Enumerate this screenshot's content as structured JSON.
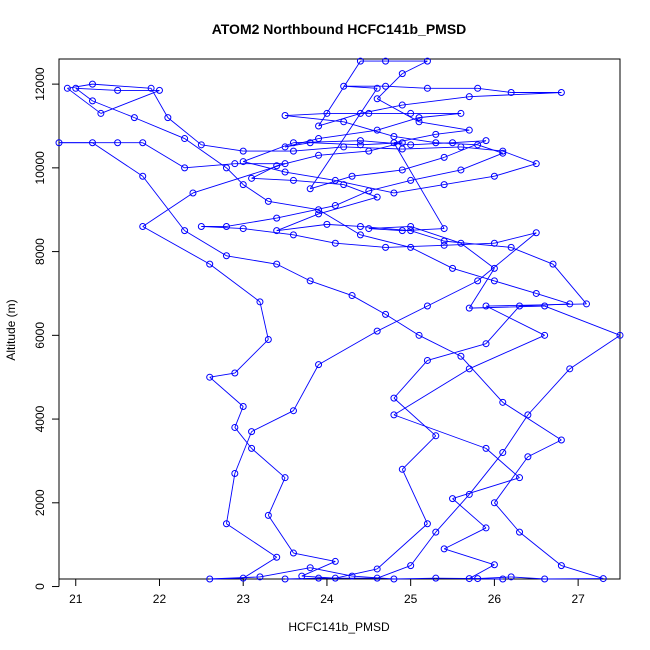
{
  "chart_data": {
    "type": "line",
    "title": "ATOM2 Northbound HCFC141b_PMSD",
    "xlabel": "HCFC141b_PMSD",
    "ylabel": "Altitude (m)",
    "xlim": [
      20.8,
      27.5
    ],
    "ylim": [
      180,
      12600
    ],
    "x_ticks": [
      21,
      22,
      23,
      24,
      25,
      26,
      27
    ],
    "y_ticks": [
      0,
      2000,
      4000,
      6000,
      8000,
      10000,
      12000
    ],
    "grid": false,
    "legend": "none",
    "marker": "open-circle",
    "series_color": "#0000ff",
    "series": [
      {
        "points": [
          [
            26.1,
            180
          ],
          [
            25.7,
            190
          ],
          [
            26.0,
            520
          ],
          [
            25.4,
            900
          ],
          [
            25.9,
            1400
          ],
          [
            25.5,
            2100
          ],
          [
            26.3,
            2600
          ],
          [
            25.9,
            3300
          ],
          [
            24.8,
            4100
          ],
          [
            25.7,
            5200
          ],
          [
            26.6,
            6000
          ],
          [
            25.9,
            6700
          ],
          [
            27.1,
            6750
          ],
          [
            26.7,
            7700
          ],
          [
            26.2,
            8100
          ],
          [
            25.4,
            8250
          ],
          [
            25.0,
            8500
          ],
          [
            24.4,
            8600
          ],
          [
            24.0,
            8650
          ],
          [
            23.4,
            8500
          ],
          [
            23.9,
            8900
          ],
          [
            24.6,
            9300
          ],
          [
            24.2,
            9600
          ],
          [
            23.6,
            9700
          ],
          [
            23.1,
            9750
          ],
          [
            23.4,
            10050
          ],
          [
            23.9,
            10300
          ],
          [
            24.5,
            10400
          ],
          [
            24.9,
            10600
          ],
          [
            24.4,
            10550
          ],
          [
            23.8,
            10600
          ],
          [
            23.5,
            10500
          ],
          [
            23.9,
            10700
          ],
          [
            24.6,
            10900
          ],
          [
            25.1,
            11200
          ],
          [
            25.6,
            11300
          ],
          [
            25.0,
            11300
          ],
          [
            24.5,
            11300
          ],
          [
            24.0,
            11300
          ],
          [
            23.5,
            11250
          ],
          [
            24.2,
            11100
          ],
          [
            24.8,
            10750
          ],
          [
            25.3,
            10600
          ],
          [
            25.8,
            10550
          ],
          [
            26.1,
            10350
          ],
          [
            25.6,
            9950
          ],
          [
            25.0,
            9700
          ],
          [
            24.5,
            9450
          ],
          [
            24.1,
            9100
          ],
          [
            23.4,
            8800
          ],
          [
            22.8,
            8600
          ],
          [
            22.5,
            8600
          ],
          [
            23.0,
            8550
          ],
          [
            23.6,
            8400
          ],
          [
            24.1,
            8200
          ],
          [
            24.7,
            8100
          ],
          [
            25.4,
            8150
          ],
          [
            26.0,
            8200
          ],
          [
            26.5,
            8450
          ],
          [
            25.8,
            7300
          ],
          [
            25.2,
            6700
          ],
          [
            24.6,
            6100
          ],
          [
            23.9,
            5300
          ],
          [
            23.6,
            4200
          ],
          [
            23.1,
            3700
          ],
          [
            22.9,
            2700
          ],
          [
            22.8,
            1500
          ],
          [
            23.4,
            700
          ],
          [
            23.0,
            200
          ],
          [
            22.6,
            180
          ],
          [
            23.2,
            230
          ],
          [
            23.8,
            450
          ],
          [
            24.3,
            250
          ],
          [
            24.8,
            180
          ],
          [
            25.3,
            200
          ],
          [
            25.8,
            190
          ],
          [
            26.2,
            230
          ],
          [
            26.6,
            180
          ],
          [
            27.3,
            190
          ],
          [
            26.8,
            500
          ],
          [
            26.3,
            1300
          ],
          [
            26.0,
            2000
          ],
          [
            26.4,
            3100
          ],
          [
            26.8,
            3500
          ],
          [
            26.1,
            4400
          ],
          [
            25.6,
            5500
          ],
          [
            25.1,
            6000
          ],
          [
            24.7,
            6500
          ],
          [
            24.3,
            6950
          ],
          [
            23.8,
            7300
          ],
          [
            23.4,
            7700
          ],
          [
            22.8,
            7900
          ],
          [
            22.3,
            8500
          ],
          [
            21.8,
            9800
          ],
          [
            21.2,
            10600
          ],
          [
            20.8,
            10600
          ],
          [
            21.5,
            10600
          ],
          [
            21.8,
            10600
          ],
          [
            22.3,
            10000
          ],
          [
            22.9,
            10100
          ],
          [
            23.5,
            10100
          ],
          [
            22.4,
            9400
          ],
          [
            21.8,
            8600
          ],
          [
            22.6,
            7700
          ],
          [
            23.2,
            6800
          ],
          [
            23.3,
            5900
          ],
          [
            22.9,
            5100
          ],
          [
            22.6,
            5000
          ],
          [
            23.0,
            4300
          ],
          [
            22.9,
            3800
          ],
          [
            23.1,
            3300
          ],
          [
            23.5,
            2600
          ],
          [
            23.3,
            1700
          ],
          [
            23.6,
            800
          ],
          [
            24.1,
            600
          ],
          [
            23.7,
            250
          ],
          [
            24.1,
            200
          ],
          [
            24.6,
            420
          ],
          [
            25.2,
            1500
          ],
          [
            24.9,
            2800
          ],
          [
            25.3,
            3600
          ],
          [
            24.8,
            4500
          ],
          [
            25.2,
            5400
          ],
          [
            25.9,
            5800
          ],
          [
            26.3,
            6700
          ],
          [
            26.9,
            6750
          ],
          [
            26.5,
            7000
          ],
          [
            26.0,
            7300
          ],
          [
            25.5,
            7600
          ],
          [
            25.0,
            8100
          ],
          [
            24.4,
            8400
          ],
          [
            23.9,
            9000
          ],
          [
            23.3,
            9200
          ],
          [
            23.0,
            9600
          ],
          [
            22.8,
            10000
          ],
          [
            22.3,
            10700
          ],
          [
            21.7,
            11200
          ],
          [
            21.2,
            11600
          ],
          [
            21.0,
            11900
          ],
          [
            21.5,
            11850
          ],
          [
            22.0,
            11850
          ],
          [
            21.3,
            11300
          ],
          [
            20.9,
            11900
          ],
          [
            21.2,
            12000
          ],
          [
            21.9,
            11900
          ],
          [
            22.1,
            11200
          ],
          [
            22.5,
            10550
          ],
          [
            23.0,
            10400
          ],
          [
            23.6,
            10400
          ],
          [
            24.2,
            10500
          ],
          [
            24.9,
            10450
          ],
          [
            25.6,
            10500
          ],
          [
            26.1,
            10400
          ],
          [
            26.5,
            10100
          ],
          [
            26.0,
            9800
          ],
          [
            25.4,
            9600
          ],
          [
            24.8,
            9400
          ],
          [
            24.1,
            9700
          ],
          [
            23.5,
            9900
          ],
          [
            23.0,
            10150
          ],
          [
            23.6,
            10600
          ],
          [
            24.4,
            10650
          ],
          [
            25.0,
            10550
          ],
          [
            25.5,
            10600
          ],
          [
            25.9,
            10650
          ],
          [
            25.4,
            10250
          ],
          [
            24.9,
            9950
          ],
          [
            24.3,
            9800
          ],
          [
            23.8,
            9500
          ],
          [
            24.6,
            11900
          ],
          [
            24.2,
            11950
          ],
          [
            24.7,
            11950
          ],
          [
            25.2,
            11900
          ],
          [
            25.8,
            11900
          ],
          [
            26.2,
            11800
          ],
          [
            26.8,
            11800
          ],
          [
            25.7,
            11700
          ],
          [
            24.9,
            11500
          ],
          [
            24.4,
            11300
          ],
          [
            23.9,
            11000
          ],
          [
            24.4,
            12550
          ],
          [
            24.7,
            12550
          ],
          [
            25.2,
            12550
          ],
          [
            24.9,
            12250
          ],
          [
            24.6,
            11650
          ],
          [
            25.1,
            11100
          ],
          [
            25.7,
            10900
          ],
          [
            25.3,
            10800
          ],
          [
            24.8,
            10600
          ],
          [
            25.4,
            8550
          ],
          [
            24.9,
            8500
          ],
          [
            24.5,
            8550
          ],
          [
            25.0,
            8600
          ],
          [
            25.6,
            8200
          ],
          [
            26.0,
            7600
          ],
          [
            25.7,
            6650
          ],
          [
            26.6,
            6700
          ],
          [
            27.5,
            6000
          ],
          [
            26.9,
            5200
          ],
          [
            26.4,
            4100
          ],
          [
            26.1,
            3200
          ],
          [
            25.7,
            2200
          ],
          [
            25.3,
            1300
          ],
          [
            25.0,
            500
          ],
          [
            24.6,
            200
          ],
          [
            23.9,
            200
          ],
          [
            23.5,
            180
          ]
        ]
      }
    ]
  }
}
